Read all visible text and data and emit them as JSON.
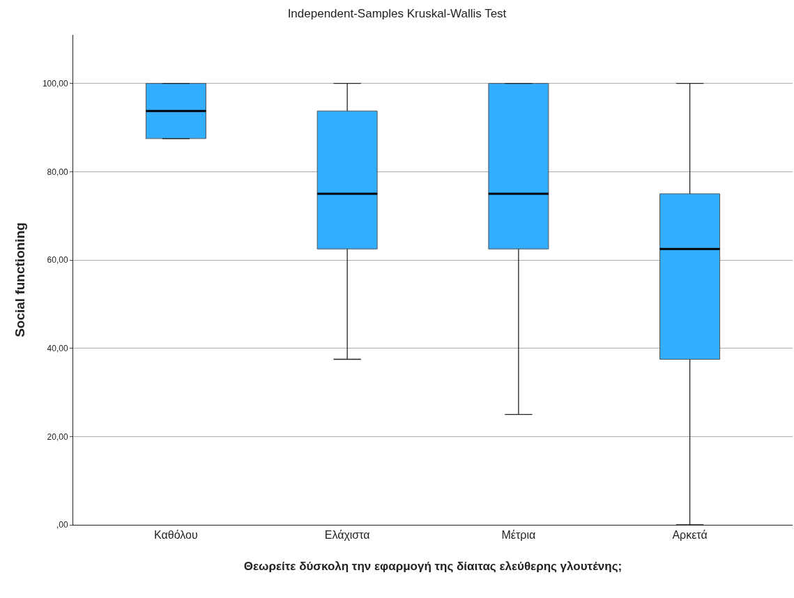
{
  "chart_data": {
    "type": "box",
    "title": "Independent-Samples Kruskal-Wallis Test",
    "xlabel": "Θεωρείτε δύσκολη την εφαρμογή της δίαιτας ελεύθερης γλουτένης;",
    "ylabel": "Social functioning",
    "categories": [
      "Καθόλου",
      "Ελάχιστα",
      "Μέτρια",
      "Αρκετά"
    ],
    "boxes": [
      {
        "low": 87.5,
        "q1": 87.5,
        "median": 93.75,
        "q3": 100,
        "high": 100
      },
      {
        "low": 37.5,
        "q1": 62.5,
        "median": 75,
        "q3": 93.75,
        "high": 100
      },
      {
        "low": 25,
        "q1": 62.5,
        "median": 75,
        "q3": 100,
        "high": 100
      },
      {
        "low": 0,
        "q1": 37.5,
        "median": 62.5,
        "q3": 75,
        "high": 100
      }
    ],
    "color": "#33adff",
    "ylim": [
      0,
      111
    ],
    "yticks": [
      {
        "value": 0,
        "label": ",00"
      },
      {
        "value": 20,
        "label": "20,00"
      },
      {
        "value": 40,
        "label": "40,00"
      },
      {
        "value": 60,
        "label": "60,00"
      },
      {
        "value": 80,
        "label": "80,00"
      },
      {
        "value": 100,
        "label": "100,00"
      }
    ],
    "grid": "y"
  }
}
